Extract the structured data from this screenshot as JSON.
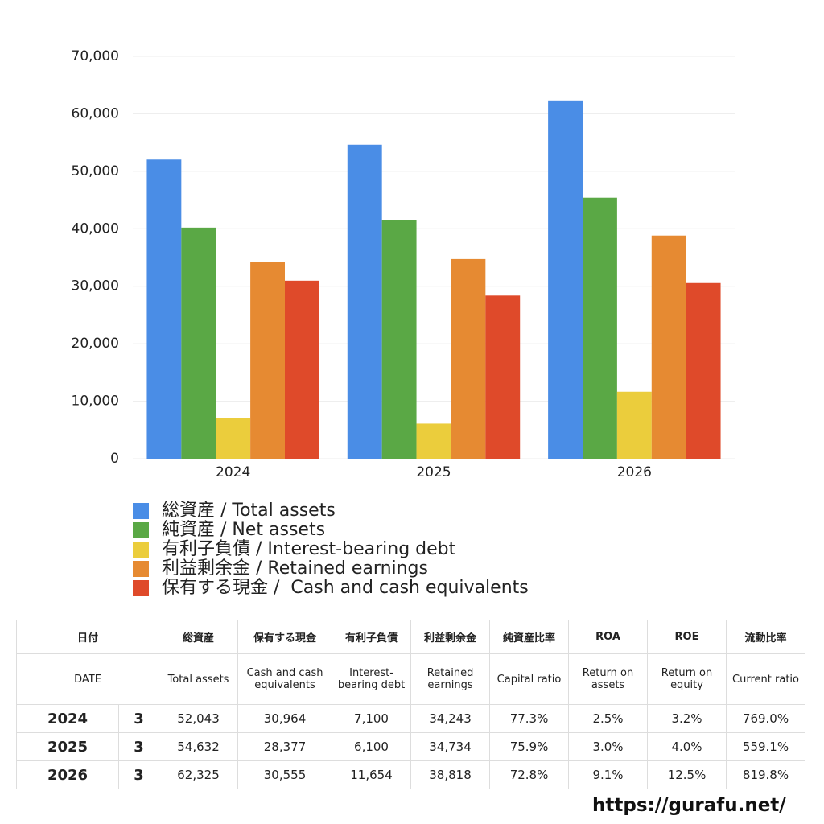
{
  "chart_data": {
    "type": "bar",
    "categories": [
      "2024",
      "2025",
      "2026"
    ],
    "series": [
      {
        "name": "総資産 / Total assets",
        "color": "#4a8de6",
        "values": [
          52043,
          54632,
          62325
        ]
      },
      {
        "name": "純資産 / Net assets",
        "color": "#5aa845",
        "values": [
          40200,
          41500,
          45400
        ]
      },
      {
        "name": "有利子負債 / Interest-bearing debt",
        "color": "#ebcd3c",
        "values": [
          7100,
          6100,
          11654
        ]
      },
      {
        "name": "利益剰余金 / Retained earnings",
        "color": "#e68a32",
        "values": [
          34243,
          34734,
          38818
        ]
      },
      {
        "name": "保有する現金 /  Cash and cash equivalents",
        "color": "#df4a2a",
        "values": [
          30964,
          28377,
          30555
        ]
      }
    ],
    "ylim": [
      0,
      70000
    ],
    "yticks": [
      0,
      {
        "value": 10000,
        "label": "10,000"
      },
      {
        "value": 20000,
        "label": "20,000"
      },
      {
        "value": 30000,
        "label": "30,000"
      },
      {
        "value": 40000,
        "label": "40,000"
      },
      {
        "value": 50000,
        "label": "50,000"
      },
      {
        "value": 60000,
        "label": "60,000"
      },
      {
        "value": 70000,
        "label": "70,000"
      }
    ],
    "grid": true
  },
  "table": {
    "header": [
      "日付",
      "総資産",
      "保有する現金",
      "有利子負債",
      "利益剰余金",
      "純資産比率",
      "ROA",
      "ROE",
      "流動比率"
    ],
    "subheader": [
      "DATE",
      "Total assets",
      "Cash and cash equivalents",
      "Interest-bearing debt",
      "Retained earnings",
      "Capital ratio",
      "Return on assets",
      "Return on equity",
      "Current ratio"
    ],
    "rows": [
      [
        "2024",
        "3",
        "52,043",
        "30,964",
        "7,100",
        "34,243",
        "77.3%",
        "2.5%",
        "3.2%",
        "769.0%"
      ],
      [
        "2025",
        "3",
        "54,632",
        "28,377",
        "6,100",
        "34,734",
        "75.9%",
        "3.0%",
        "4.0%",
        "559.1%"
      ],
      [
        "2026",
        "3",
        "62,325",
        "30,555",
        "11,654",
        "38,818",
        "72.8%",
        "9.1%",
        "12.5%",
        "819.8%"
      ]
    ]
  },
  "footer": {
    "url": "https://gurafu.net/"
  }
}
